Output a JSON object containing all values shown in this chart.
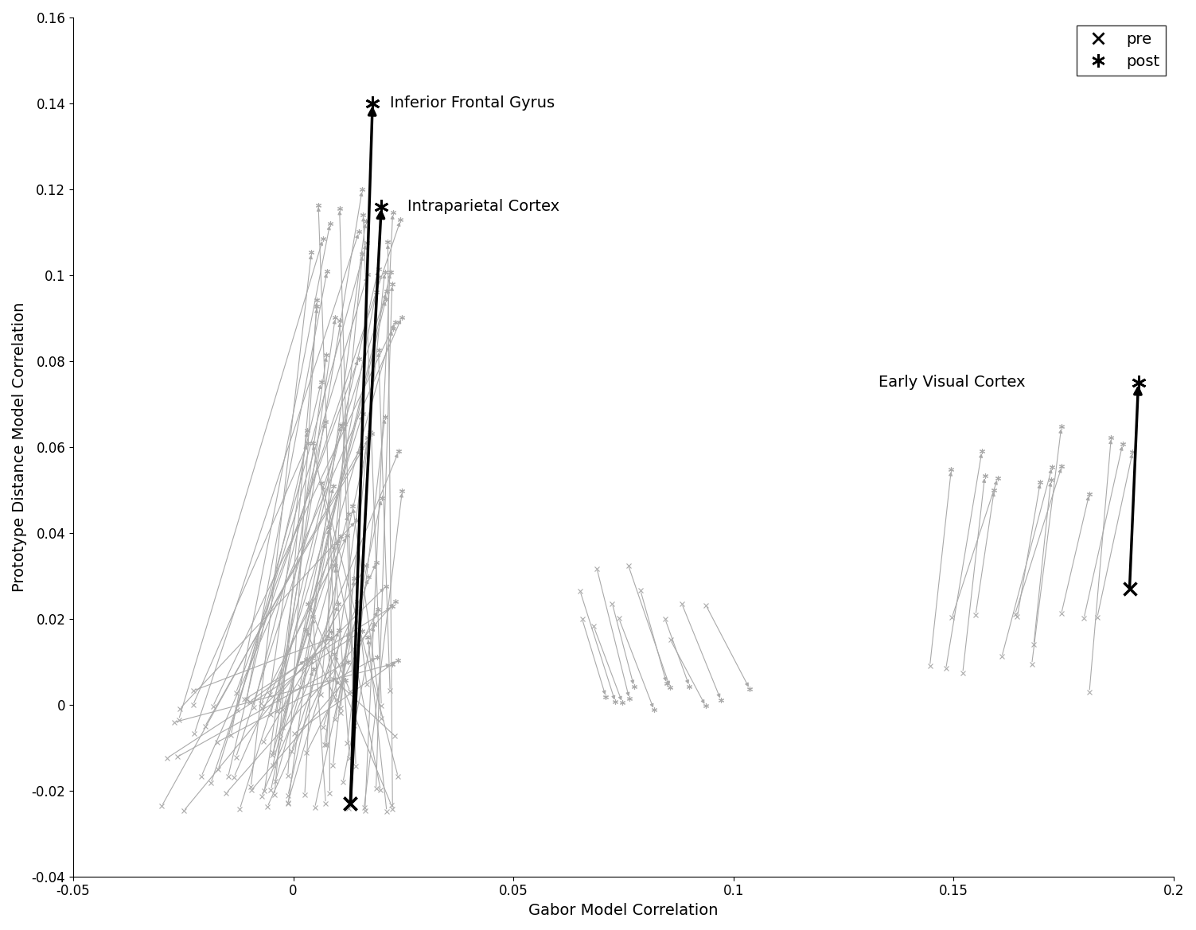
{
  "xlim": [
    -0.05,
    0.2
  ],
  "ylim": [
    -0.04,
    0.16
  ],
  "xlabel": "Gabor Model Correlation",
  "ylabel": "Prototype Distance Model Correlation",
  "highlighted": [
    {
      "label": "Inferior Frontal Gyrus",
      "pre": [
        0.013,
        -0.023
      ],
      "post": [
        0.018,
        0.14
      ]
    },
    {
      "label": "Intraparietal Cortex",
      "pre": [
        0.013,
        -0.023
      ],
      "post": [
        0.02,
        0.116
      ]
    },
    {
      "label": "Early Visual Cortex",
      "pre": [
        0.19,
        0.027
      ],
      "post": [
        0.192,
        0.075
      ]
    }
  ],
  "label_offsets": {
    "Inferior Frontal Gyrus": [
      0.022,
      0.14
    ],
    "Intraparietal Cortex": [
      0.026,
      0.116
    ],
    "Early Visual Cortex": [
      0.133,
      0.075
    ]
  },
  "gray_color": "#aaaaaa",
  "black_color": "#000000",
  "background": "#ffffff",
  "legend_fontsize": 14,
  "label_fontsize": 14,
  "tick_fontsize": 12,
  "xticks": [
    -0.05,
    0.0,
    0.05,
    0.1,
    0.15,
    0.2
  ],
  "yticks": [
    -0.04,
    -0.02,
    0.0,
    0.02,
    0.04,
    0.06,
    0.08,
    0.1,
    0.12,
    0.14,
    0.16
  ]
}
